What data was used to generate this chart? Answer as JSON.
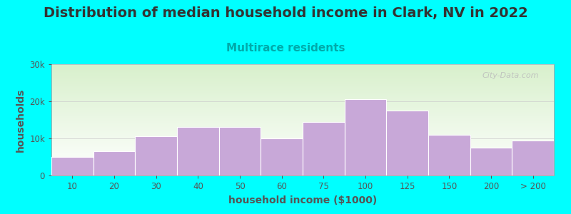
{
  "title": "Distribution of median household income in Clark, NV in 2022",
  "subtitle": "Multirace residents",
  "xlabel": "household income ($1000)",
  "ylabel": "households",
  "bar_color": "#C8A8D8",
  "bar_edge_color": "#BBAACC",
  "background_color": "#00FFFF",
  "plot_bg_top": "#D8F0CC",
  "plot_bg_bottom": "#FFFFFF",
  "categories": [
    "10",
    "20",
    "30",
    "40",
    "50",
    "60",
    "75",
    "100",
    "125",
    "150",
    "200",
    "> 200"
  ],
  "values": [
    5000,
    6500,
    10500,
    13000,
    13000,
    10000,
    14500,
    20500,
    17500,
    11000,
    7500,
    9500
  ],
  "ylim": [
    0,
    30000
  ],
  "yticks": [
    0,
    10000,
    20000,
    30000
  ],
  "ytick_labels": [
    "0",
    "10k",
    "20k",
    "30k"
  ],
  "title_fontsize": 14,
  "subtitle_fontsize": 11,
  "axis_label_fontsize": 10,
  "tick_fontsize": 8.5,
  "watermark": "City-Data.com",
  "title_color": "#333333",
  "subtitle_color": "#00AAAA",
  "axis_color": "#555555"
}
